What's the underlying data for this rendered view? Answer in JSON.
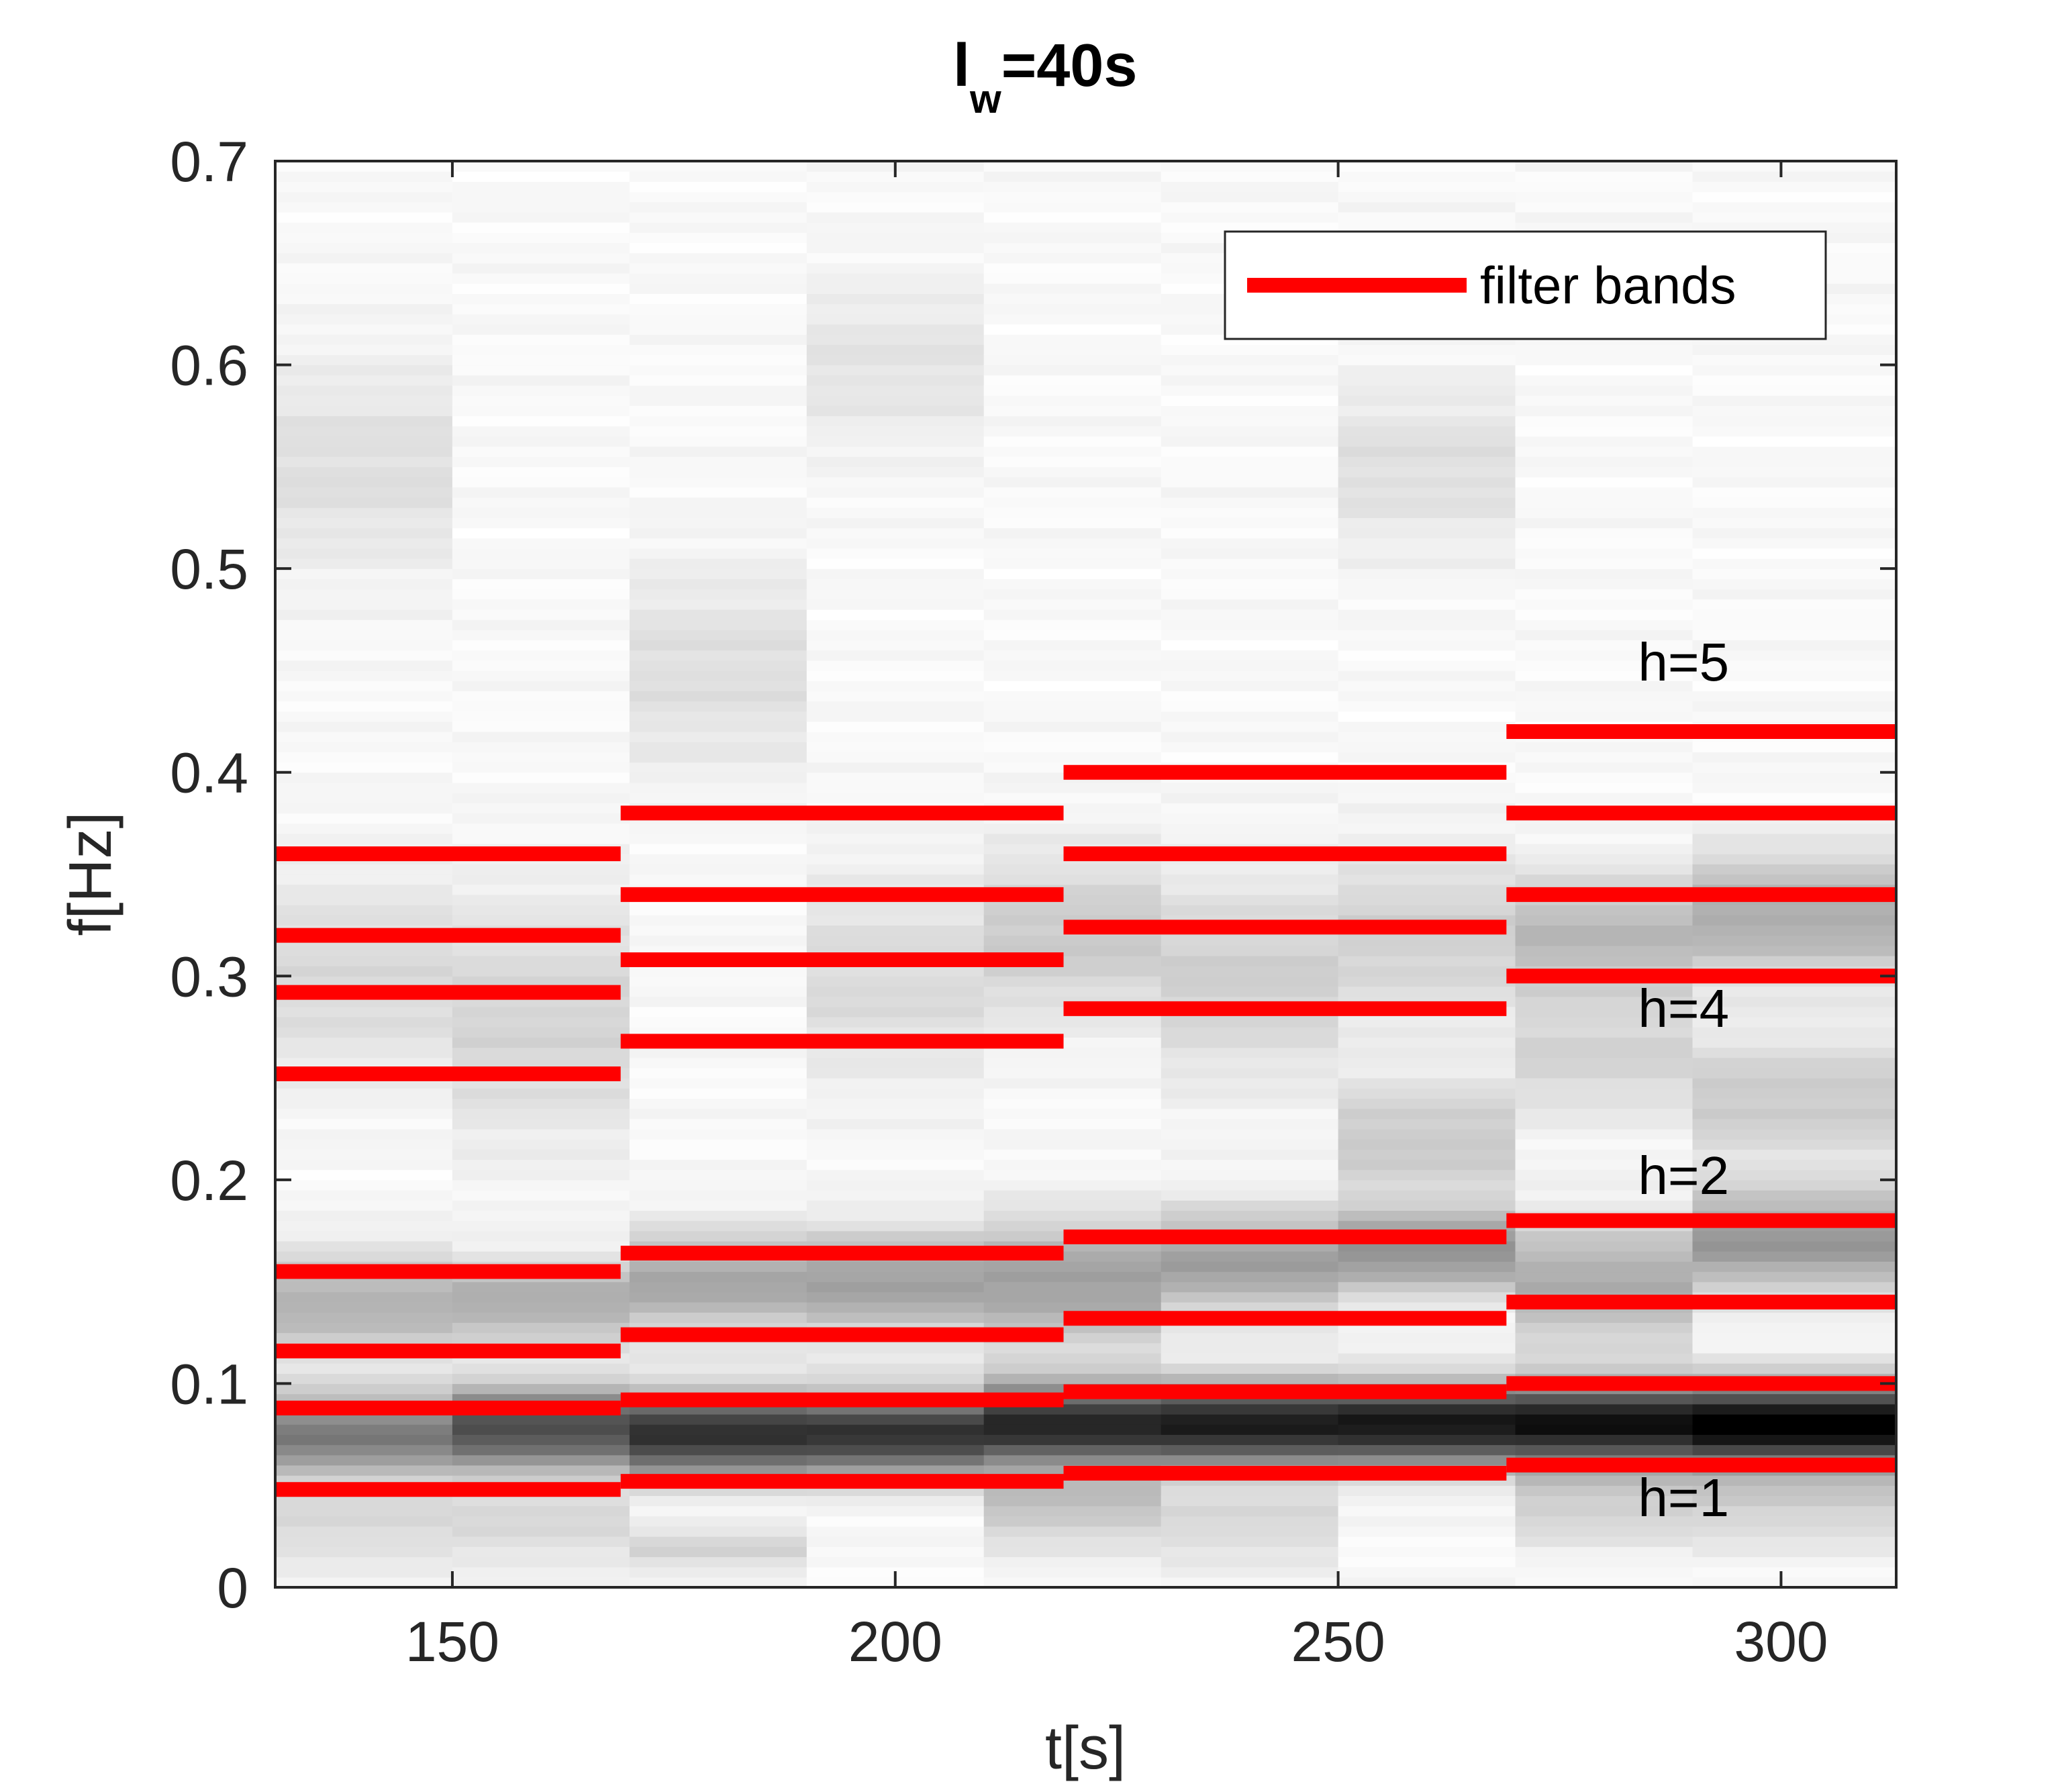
{
  "chart_data": {
    "type": "heatmap",
    "title": {
      "main": "l",
      "subscript": "w",
      "rest": "=40s"
    },
    "xlabel": "t[s]",
    "ylabel": "f[Hz]",
    "xlim": [
      130,
      313
    ],
    "ylim": [
      0,
      0.7
    ],
    "xticks": [
      150,
      200,
      250,
      300
    ],
    "xtick_labels": [
      "150",
      "200",
      "250",
      "300"
    ],
    "yticks": [
      0,
      0.1,
      0.2,
      0.3,
      0.4,
      0.5,
      0.6,
      0.7
    ],
    "ytick_labels": [
      "0",
      "0.1",
      "0.2",
      "0.3",
      "0.4",
      "0.5",
      "0.6",
      "0.7"
    ],
    "colormap": "gray-inverted",
    "heatmap": {
      "columns": [
        {
          "t0": 130,
          "t1": 150,
          "peaks": [
            {
              "f": 0.075,
              "level": 0.5,
              "width": 0.02
            },
            {
              "f": 0.14,
              "level": 0.28,
              "width": 0.025
            },
            {
              "f": 0.03,
              "level": 0.12,
              "width": 0.02
            },
            {
              "f": 0.3,
              "level": 0.12,
              "width": 0.05
            },
            {
              "f": 0.55,
              "level": 0.1,
              "width": 0.05
            }
          ]
        },
        {
          "t0": 150,
          "t1": 170,
          "peaks": [
            {
              "f": 0.078,
              "level": 0.68,
              "width": 0.02
            },
            {
              "f": 0.14,
              "level": 0.3,
              "width": 0.02
            },
            {
              "f": 0.28,
              "level": 0.14,
              "width": 0.06
            },
            {
              "f": 0.03,
              "level": 0.12,
              "width": 0.02
            }
          ]
        },
        {
          "t0": 170,
          "t1": 190,
          "peaks": [
            {
              "f": 0.075,
              "level": 0.8,
              "width": 0.02
            },
            {
              "f": 0.15,
              "level": 0.32,
              "width": 0.025
            },
            {
              "f": 0.018,
              "level": 0.15,
              "width": 0.01
            },
            {
              "f": 0.45,
              "level": 0.1,
              "width": 0.05
            }
          ]
        },
        {
          "t0": 190,
          "t1": 210,
          "peaks": [
            {
              "f": 0.075,
              "level": 0.78,
              "width": 0.02
            },
            {
              "f": 0.15,
              "level": 0.35,
              "width": 0.025
            },
            {
              "f": 0.3,
              "level": 0.12,
              "width": 0.05
            },
            {
              "f": 0.6,
              "level": 0.08,
              "width": 0.04
            }
          ]
        },
        {
          "t0": 210,
          "t1": 230,
          "peaks": [
            {
              "f": 0.08,
              "level": 0.83,
              "width": 0.02
            },
            {
              "f": 0.15,
              "level": 0.35,
              "width": 0.03
            },
            {
              "f": 0.04,
              "level": 0.2,
              "width": 0.02
            },
            {
              "f": 0.32,
              "level": 0.18,
              "width": 0.04
            }
          ]
        },
        {
          "t0": 230,
          "t1": 250,
          "peaks": [
            {
              "f": 0.08,
              "level": 0.88,
              "width": 0.02
            },
            {
              "f": 0.16,
              "level": 0.35,
              "width": 0.025
            },
            {
              "f": 0.3,
              "level": 0.16,
              "width": 0.05
            },
            {
              "f": 0.03,
              "level": 0.12,
              "width": 0.02
            }
          ]
        },
        {
          "t0": 250,
          "t1": 270,
          "peaks": [
            {
              "f": 0.08,
              "level": 0.9,
              "width": 0.02
            },
            {
              "f": 0.165,
              "level": 0.4,
              "width": 0.02
            },
            {
              "f": 0.22,
              "level": 0.18,
              "width": 0.03
            },
            {
              "f": 0.32,
              "level": 0.16,
              "width": 0.04
            },
            {
              "f": 0.55,
              "level": 0.1,
              "width": 0.04
            }
          ]
        },
        {
          "t0": 270,
          "t1": 290,
          "peaks": [
            {
              "f": 0.08,
              "level": 0.92,
              "width": 0.02
            },
            {
              "f": 0.15,
              "level": 0.3,
              "width": 0.03
            },
            {
              "f": 0.32,
              "level": 0.25,
              "width": 0.03
            },
            {
              "f": 0.26,
              "level": 0.14,
              "width": 0.03
            },
            {
              "f": 0.04,
              "level": 0.15,
              "width": 0.02
            }
          ]
        },
        {
          "t0": 290,
          "t1": 313,
          "peaks": [
            {
              "f": 0.08,
              "level": 1.0,
              "width": 0.02
            },
            {
              "f": 0.17,
              "level": 0.38,
              "width": 0.025
            },
            {
              "f": 0.33,
              "level": 0.3,
              "width": 0.03
            },
            {
              "f": 0.24,
              "level": 0.18,
              "width": 0.03
            },
            {
              "f": 0.04,
              "level": 0.15,
              "width": 0.02
            }
          ]
        }
      ]
    },
    "series": [
      {
        "name": "filter bands",
        "color": "#ff0000",
        "segments": [
          {
            "t0": 130,
            "t1": 169,
            "f": [
              0.048,
              0.088,
              0.116,
              0.155,
              0.252,
              0.292,
              0.32,
              0.36
            ]
          },
          {
            "t0": 169,
            "t1": 219,
            "f": [
              0.052,
              0.092,
              0.124,
              0.164,
              0.268,
              0.308,
              0.34,
              0.38
            ]
          },
          {
            "t0": 219,
            "t1": 269,
            "f": [
              0.056,
              0.096,
              0.132,
              0.172,
              0.284,
              0.324,
              0.36,
              0.4
            ]
          },
          {
            "t0": 269,
            "t1": 313,
            "f": [
              0.06,
              0.1,
              0.14,
              0.18,
              0.3,
              0.34,
              0.38,
              0.42
            ]
          }
        ]
      }
    ],
    "legend": {
      "position": "top-right",
      "entries": [
        "filter bands"
      ]
    },
    "annotations": [
      {
        "text": "h=5",
        "t": 289,
        "f": 0.445
      },
      {
        "text": "h=4",
        "t": 289,
        "f": 0.275
      },
      {
        "text": "h=2",
        "t": 289,
        "f": 0.193
      },
      {
        "text": "h=1",
        "t": 289,
        "f": 0.035
      }
    ]
  }
}
